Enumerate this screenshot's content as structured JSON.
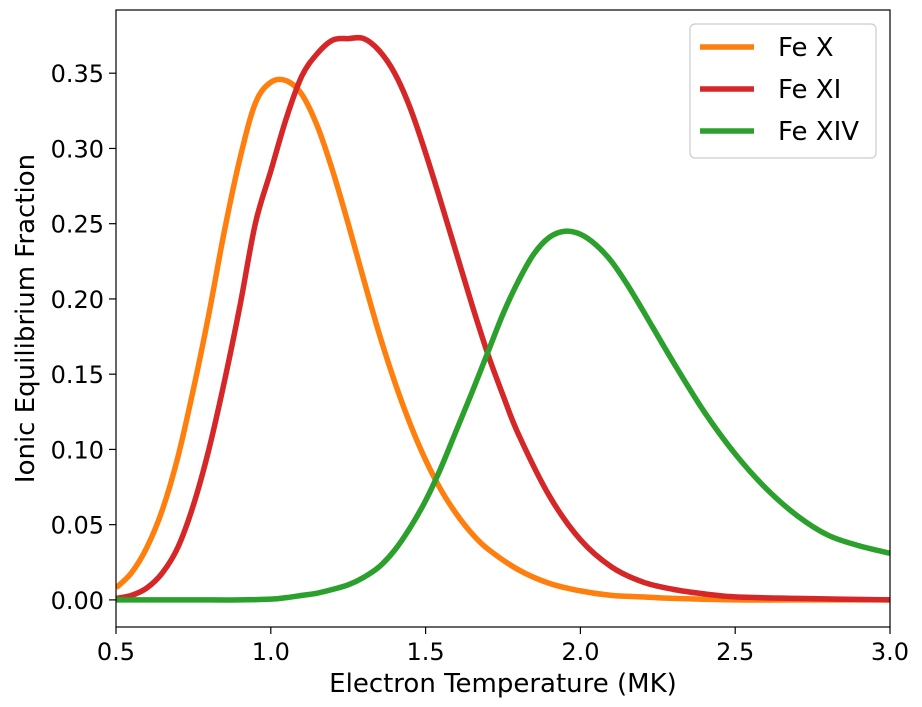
{
  "chart_data": {
    "type": "line",
    "title": "",
    "xlabel": "Electron Temperature (MK)",
    "ylabel": "Ionic Equilibrium Fraction",
    "xlim": [
      0.5,
      3.0
    ],
    "ylim": [
      -0.018,
      0.392
    ],
    "xticks": [
      0.5,
      1.0,
      1.5,
      2.0,
      2.5,
      3.0
    ],
    "xtick_labels": [
      "0.5",
      "1.0",
      "1.5",
      "2.0",
      "2.5",
      "3.0"
    ],
    "yticks": [
      0.0,
      0.05,
      0.1,
      0.15,
      0.2,
      0.25,
      0.3,
      0.35
    ],
    "ytick_labels": [
      "0.00",
      "0.05",
      "0.10",
      "0.15",
      "0.20",
      "0.25",
      "0.30",
      "0.35"
    ],
    "grid": false,
    "legend": {
      "placement": "top-right",
      "entries": [
        "Fe X",
        "Fe XI",
        "Fe XIV"
      ]
    },
    "series": [
      {
        "name": "Fe X",
        "color": "#ff7f0e",
        "x": [
          0.5,
          0.55,
          0.6,
          0.65,
          0.7,
          0.75,
          0.8,
          0.85,
          0.9,
          0.95,
          1.0,
          1.05,
          1.1,
          1.15,
          1.2,
          1.25,
          1.3,
          1.35,
          1.4,
          1.45,
          1.5,
          1.55,
          1.6,
          1.65,
          1.7,
          1.8,
          1.9,
          2.0,
          2.1,
          2.2,
          2.3,
          2.5,
          2.7,
          3.0
        ],
        "y": [
          0.008,
          0.018,
          0.035,
          0.06,
          0.095,
          0.14,
          0.19,
          0.245,
          0.293,
          0.33,
          0.344,
          0.345,
          0.336,
          0.315,
          0.285,
          0.25,
          0.213,
          0.177,
          0.145,
          0.117,
          0.093,
          0.073,
          0.057,
          0.044,
          0.034,
          0.02,
          0.011,
          0.006,
          0.003,
          0.002,
          0.001,
          0.0,
          0.0,
          0.0
        ]
      },
      {
        "name": "Fe XI",
        "color": "#d62728",
        "x": [
          0.5,
          0.55,
          0.6,
          0.65,
          0.7,
          0.75,
          0.8,
          0.85,
          0.9,
          0.95,
          1.0,
          1.05,
          1.1,
          1.15,
          1.2,
          1.25,
          1.3,
          1.35,
          1.4,
          1.45,
          1.5,
          1.55,
          1.6,
          1.65,
          1.7,
          1.75,
          1.8,
          1.9,
          2.0,
          2.1,
          2.2,
          2.3,
          2.4,
          2.5,
          2.7,
          3.0
        ],
        "y": [
          0.001,
          0.003,
          0.008,
          0.018,
          0.035,
          0.063,
          0.1,
          0.145,
          0.195,
          0.25,
          0.285,
          0.32,
          0.348,
          0.363,
          0.372,
          0.373,
          0.373,
          0.365,
          0.35,
          0.327,
          0.297,
          0.264,
          0.23,
          0.196,
          0.164,
          0.136,
          0.11,
          0.069,
          0.04,
          0.022,
          0.012,
          0.007,
          0.004,
          0.002,
          0.001,
          0.0
        ]
      },
      {
        "name": "Fe XIV",
        "color": "#2ca02c",
        "x": [
          0.5,
          0.8,
          0.9,
          1.0,
          1.05,
          1.1,
          1.15,
          1.2,
          1.25,
          1.3,
          1.35,
          1.4,
          1.45,
          1.5,
          1.55,
          1.6,
          1.65,
          1.7,
          1.75,
          1.8,
          1.85,
          1.9,
          1.95,
          2.0,
          2.05,
          2.1,
          2.15,
          2.2,
          2.3,
          2.4,
          2.5,
          2.6,
          2.7,
          2.8,
          2.9,
          3.0
        ],
        "y": [
          0.0,
          0.0,
          0.0,
          0.0005,
          0.0015,
          0.003,
          0.0045,
          0.007,
          0.01,
          0.015,
          0.022,
          0.033,
          0.048,
          0.066,
          0.088,
          0.113,
          0.138,
          0.164,
          0.19,
          0.212,
          0.23,
          0.241,
          0.245,
          0.243,
          0.236,
          0.225,
          0.21,
          0.193,
          0.158,
          0.125,
          0.097,
          0.074,
          0.056,
          0.043,
          0.036,
          0.031
        ]
      }
    ]
  }
}
